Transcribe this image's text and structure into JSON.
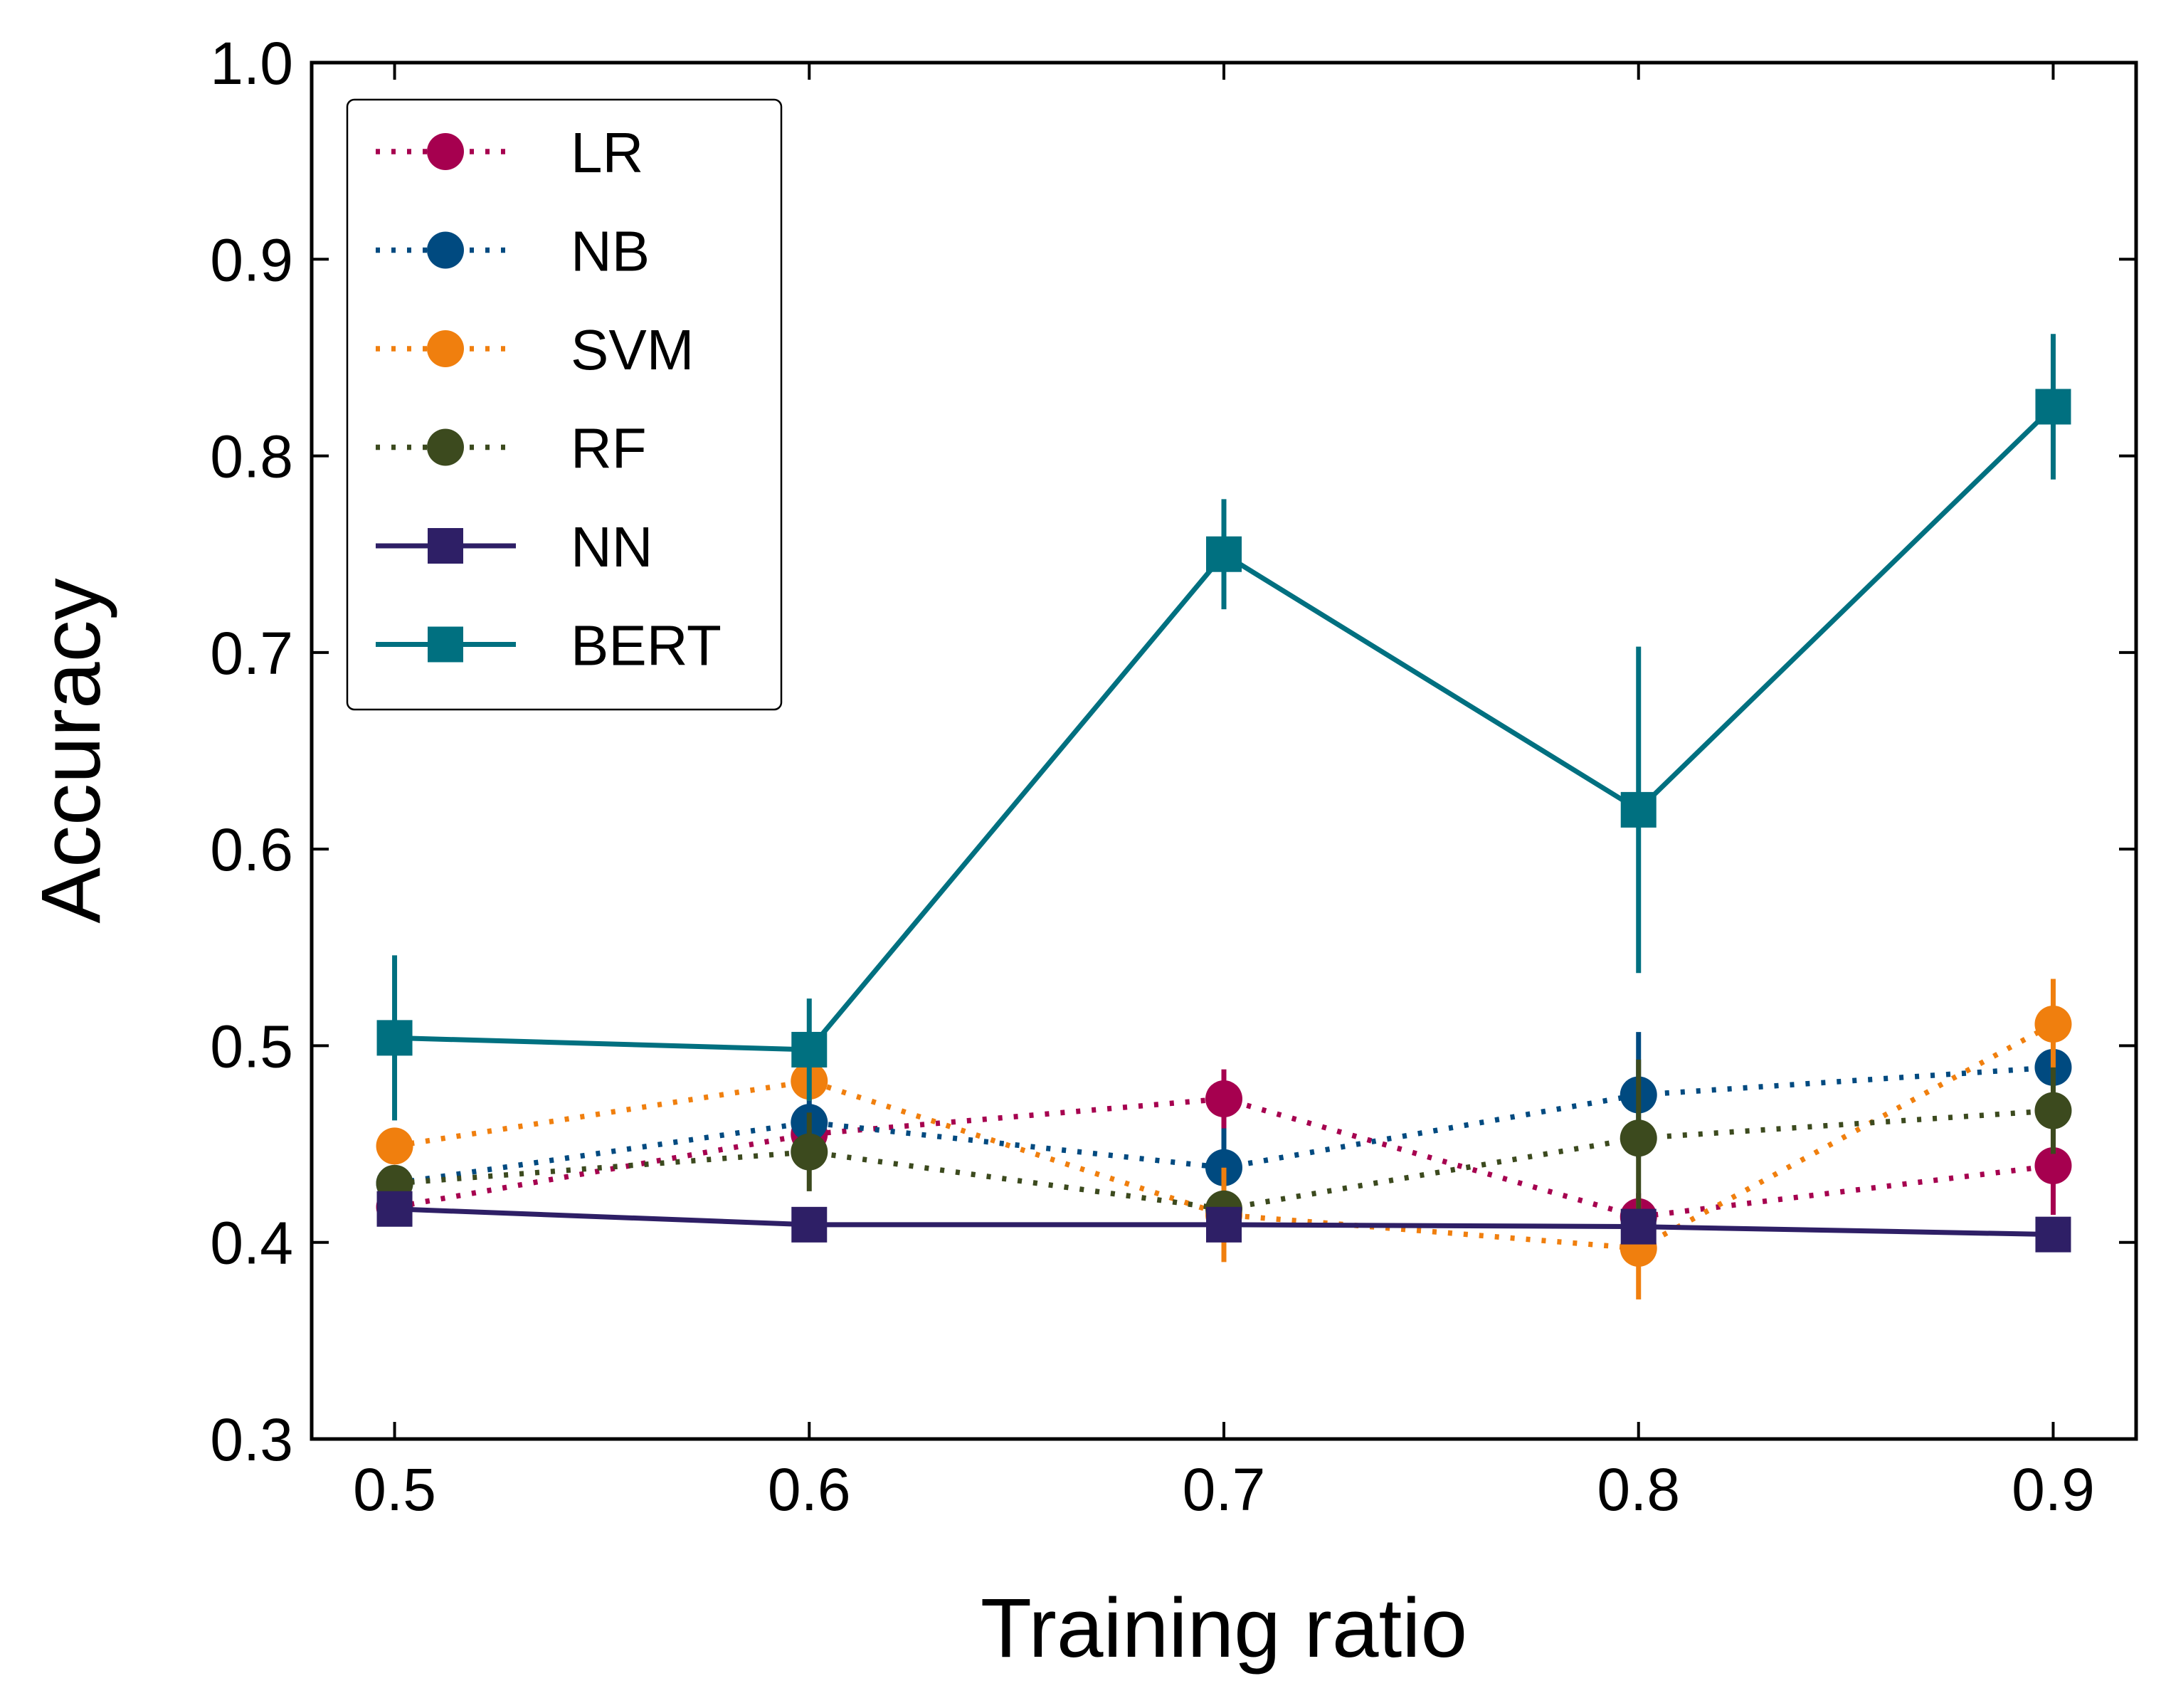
{
  "chart_data": {
    "type": "line",
    "xlabel": "Training ratio",
    "ylabel": "Accuracy",
    "xlim": [
      0.48,
      0.92
    ],
    "ylim": [
      0.3,
      1.0
    ],
    "x": [
      0.5,
      0.6,
      0.7,
      0.8,
      0.9
    ],
    "x_ticks": [
      "0.5",
      "0.6",
      "0.7",
      "0.8",
      "0.9"
    ],
    "y_ticks": [
      "0.3",
      "0.4",
      "0.5",
      "0.6",
      "0.7",
      "0.8",
      "0.9",
      "1.0"
    ],
    "legend_position": "top-left",
    "grid": false,
    "series": [
      {
        "name": "LR",
        "color": "#A6004F",
        "line_style": "dotted",
        "marker": "circle",
        "values": [
          0.418,
          0.455,
          0.473,
          0.413,
          0.439
        ],
        "errors": [
          0.006,
          0.008,
          0.015,
          0.012,
          0.025
        ]
      },
      {
        "name": "NB",
        "color": "#004A80",
        "line_style": "dotted",
        "marker": "circle",
        "values": [
          0.43,
          0.461,
          0.438,
          0.475,
          0.489
        ],
        "errors": [
          0.006,
          0.012,
          0.02,
          0.032,
          0.006
        ]
      },
      {
        "name": "SVM",
        "color": "#F07F0E",
        "line_style": "dotted",
        "marker": "circle",
        "values": [
          0.449,
          0.482,
          0.414,
          0.397,
          0.511
        ],
        "errors": [
          0.006,
          0.01,
          0.024,
          0.026,
          0.023
        ]
      },
      {
        "name": "RF",
        "color": "#3C4A1E",
        "line_style": "dotted",
        "marker": "circle",
        "values": [
          0.43,
          0.446,
          0.417,
          0.453,
          0.467
        ],
        "errors": [
          0.006,
          0.02,
          0.008,
          0.04,
          0.022
        ]
      },
      {
        "name": "NN",
        "color": "#2E1F66",
        "line_style": "solid",
        "marker": "square",
        "values": [
          0.417,
          0.409,
          0.409,
          0.408,
          0.404
        ],
        "errors": [
          0.004,
          0.004,
          0.004,
          0.004,
          0.004
        ]
      },
      {
        "name": "BERT",
        "color": "#007080",
        "line_style": "solid",
        "marker": "square",
        "values": [
          0.504,
          0.498,
          0.75,
          0.62,
          0.825
        ],
        "errors": [
          0.042,
          0.026,
          0.028,
          0.083,
          0.037
        ]
      }
    ]
  }
}
